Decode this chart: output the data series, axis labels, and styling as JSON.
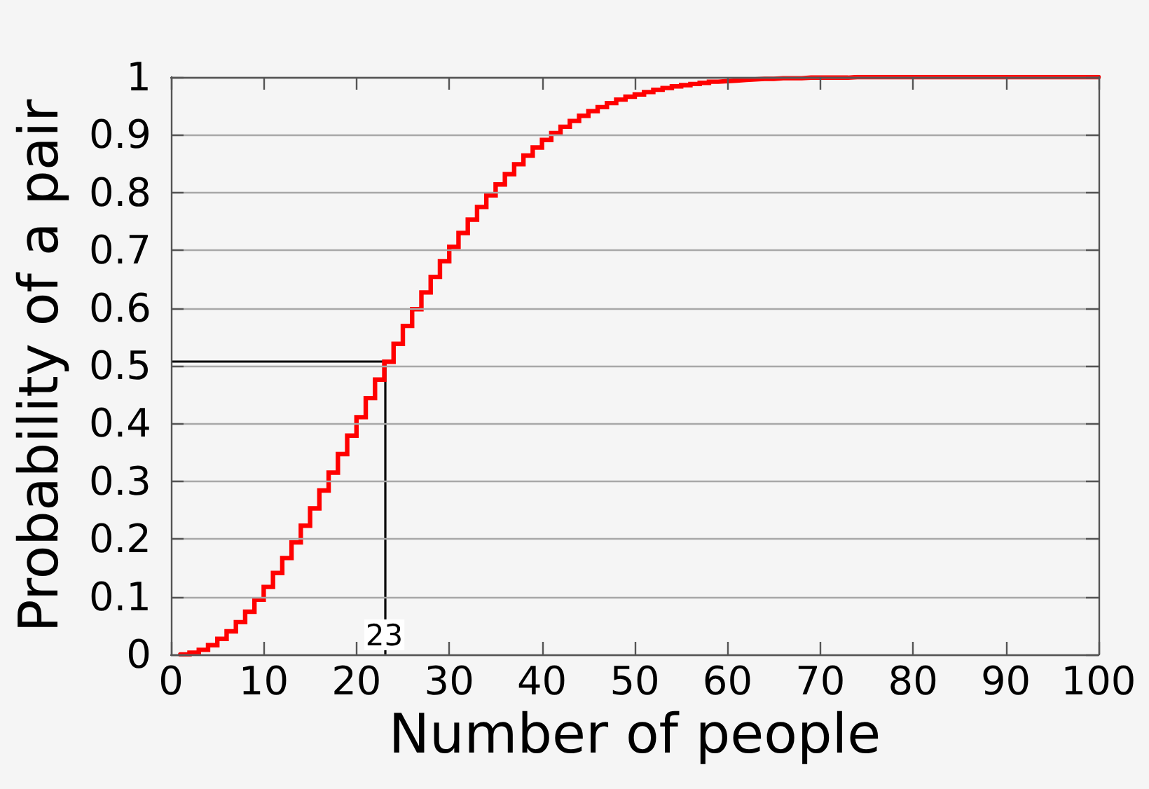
{
  "chart_data": {
    "type": "step",
    "xlabel": "Number of people",
    "ylabel": "Probability of a pair",
    "xlim": [
      0,
      100
    ],
    "xticks": [
      0,
      10,
      20,
      30,
      40,
      50,
      60,
      70,
      80,
      90,
      100
    ],
    "ylim": [
      0,
      1
    ],
    "yticks": [
      0,
      0.1,
      0.2,
      0.3,
      0.4,
      0.5,
      0.6,
      0.7,
      0.8,
      0.9,
      1
    ],
    "grid": "y",
    "marker": "none",
    "line_style": "solid",
    "ref_lines": [
      {
        "axis": "y",
        "value": 0.507,
        "color": "#000000"
      },
      {
        "axis": "x",
        "value": 23,
        "label": "23",
        "color": "#000000"
      }
    ],
    "series": [
      {
        "color": "#ff0000",
        "x": [
          1,
          2,
          3,
          4,
          5,
          6,
          7,
          8,
          9,
          10,
          11,
          12,
          13,
          14,
          15,
          16,
          17,
          18,
          19,
          20,
          21,
          22,
          23,
          24,
          25,
          26,
          27,
          28,
          29,
          30,
          31,
          32,
          33,
          34,
          35,
          36,
          37,
          38,
          39,
          40,
          41,
          42,
          43,
          44,
          45,
          46,
          47,
          48,
          49,
          50,
          51,
          52,
          53,
          54,
          55,
          56,
          57,
          58,
          59,
          60,
          61,
          62,
          63,
          64,
          65,
          66,
          67,
          68,
          69,
          70,
          71,
          72,
          73,
          74,
          75,
          76,
          77,
          78,
          79,
          80,
          81,
          82,
          83,
          84,
          85,
          86,
          87,
          88,
          89,
          90,
          91,
          92,
          93,
          94,
          95,
          96,
          97,
          98,
          99,
          100
        ],
        "values": [
          0,
          0.003,
          0.008,
          0.016,
          0.027,
          0.04,
          0.056,
          0.074,
          0.095,
          0.117,
          0.141,
          0.167,
          0.194,
          0.223,
          0.253,
          0.284,
          0.315,
          0.347,
          0.379,
          0.411,
          0.444,
          0.476,
          0.507,
          0.538,
          0.569,
          0.598,
          0.627,
          0.654,
          0.681,
          0.706,
          0.73,
          0.753,
          0.775,
          0.795,
          0.814,
          0.832,
          0.849,
          0.864,
          0.878,
          0.891,
          0.903,
          0.914,
          0.924,
          0.933,
          0.941,
          0.948,
          0.955,
          0.961,
          0.966,
          0.97,
          0.974,
          0.978,
          0.981,
          0.984,
          0.986,
          0.988,
          0.99,
          0.992,
          0.993,
          0.994,
          0.995,
          0.996,
          0.997,
          0.997,
          0.998,
          0.998,
          0.998,
          0.999,
          0.999,
          0.999,
          0.999,
          0.999,
          1,
          1,
          1,
          1,
          1,
          1,
          1,
          1,
          1,
          1,
          1,
          1,
          1,
          1,
          1,
          1,
          1,
          1,
          1,
          1,
          1,
          1,
          1,
          1,
          1,
          1,
          1,
          1
        ]
      }
    ]
  }
}
